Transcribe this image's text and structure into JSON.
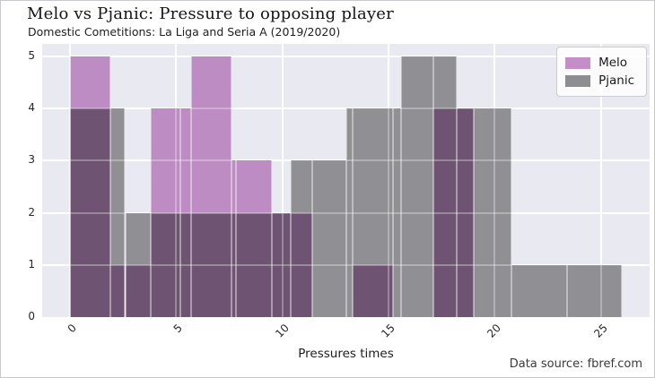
{
  "caption": "Data source: fbref.com",
  "chart_data": {
    "type": "histogram",
    "title": "Melo vs Pjanic: Pressure to opposing player",
    "subtitle": "Domestic Cometitions: La Liga and Seria A (2019/2020)",
    "xlabel": "Pressures times",
    "ylabel": "",
    "x_ticks": [
      0,
      5,
      10,
      15,
      20,
      25
    ],
    "y_ticks": [
      0,
      1,
      2,
      3,
      4,
      5
    ],
    "xlim": [
      -1.3,
      27.3
    ],
    "ylim": [
      0,
      5
    ],
    "grid": "on",
    "legend_position": "top-right",
    "series": [
      {
        "name": "Melo",
        "color": "#bd8cc3",
        "legend_color": "#c48fc6",
        "bin_start": 0,
        "bin_width": 1.9,
        "counts": [
          5,
          1,
          4,
          5,
          3,
          2,
          0,
          1,
          0,
          4
        ]
      },
      {
        "name": "Pjanic",
        "color": "#909094",
        "legend_color": "#8e8e92",
        "bin_start": 0,
        "bin_width": 2.6,
        "counts": [
          4,
          2,
          2,
          2,
          3,
          4,
          5,
          4,
          1,
          1
        ]
      }
    ],
    "overlap_color": "#6e5472",
    "plot_background": "#e9e9f1",
    "gridline_color": "#ffffff"
  }
}
